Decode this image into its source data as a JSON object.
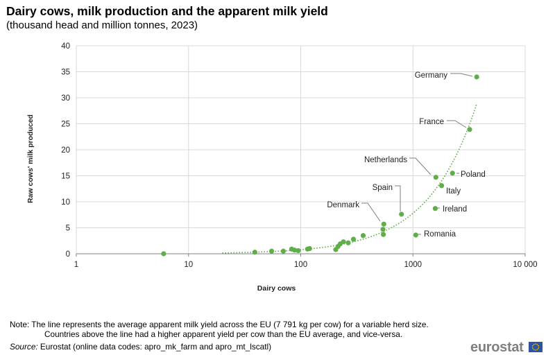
{
  "header": {
    "title": "Dairy cows, milk production and the apparent milk yield",
    "subtitle": "(thousand head and million tonnes, 2023)"
  },
  "chart_data": {
    "type": "scatter",
    "xlabel": "Dairy cows",
    "ylabel": "Raw cows' milk produced",
    "x_scale": "log",
    "xlim": [
      1,
      10000
    ],
    "ylim": [
      0,
      40
    ],
    "x_ticks": [
      1,
      10,
      100,
      1000,
      10000
    ],
    "x_tick_labels": [
      "1",
      "10",
      "100",
      "1000",
      "10 000"
    ],
    "y_ticks": [
      0,
      5,
      10,
      15,
      20,
      25,
      30,
      35,
      40
    ],
    "grid": true,
    "point_color": "#5fae4a",
    "trend_color": "#5fae4a",
    "trend": {
      "name": "EU average apparent milk yield",
      "yield_tonnes_per_cow": 7.791,
      "x_range": [
        20,
        3700
      ]
    },
    "points": [
      {
        "label": "Germany",
        "x": 3700,
        "y": 34.0
      },
      {
        "label": "France",
        "x": 3200,
        "y": 23.9
      },
      {
        "label": "Netherlands",
        "x": 1600,
        "y": 14.7
      },
      {
        "label": "Poland",
        "x": 2250,
        "y": 15.5
      },
      {
        "label": "Italy",
        "x": 1800,
        "y": 13.1
      },
      {
        "label": "Ireland",
        "x": 1580,
        "y": 8.7
      },
      {
        "label": "Spain",
        "x": 790,
        "y": 7.6
      },
      {
        "label": "Denmark",
        "x": 550,
        "y": 5.7
      },
      {
        "label": "Romania",
        "x": 1060,
        "y": 3.6
      },
      {
        "label": "",
        "x": 540,
        "y": 4.7
      },
      {
        "label": "",
        "x": 545,
        "y": 3.7
      },
      {
        "label": "",
        "x": 360,
        "y": 3.5
      },
      {
        "label": "",
        "x": 295,
        "y": 2.8
      },
      {
        "label": "",
        "x": 265,
        "y": 2.1
      },
      {
        "label": "",
        "x": 240,
        "y": 2.3
      },
      {
        "label": "",
        "x": 225,
        "y": 1.9
      },
      {
        "label": "",
        "x": 215,
        "y": 1.4
      },
      {
        "label": "",
        "x": 205,
        "y": 0.8
      },
      {
        "label": "",
        "x": 120,
        "y": 1.0
      },
      {
        "label": "",
        "x": 115,
        "y": 0.9
      },
      {
        "label": "",
        "x": 95,
        "y": 0.6
      },
      {
        "label": "",
        "x": 88,
        "y": 0.7
      },
      {
        "label": "",
        "x": 83,
        "y": 0.9
      },
      {
        "label": "",
        "x": 70,
        "y": 0.5
      },
      {
        "label": "",
        "x": 55,
        "y": 0.5
      },
      {
        "label": "",
        "x": 39,
        "y": 0.3
      },
      {
        "label": "",
        "x": 6,
        "y": 0.0
      }
    ]
  },
  "notes": {
    "line1": "Note: The line represents the average apparent milk yield across the EU (7 791 kg per cow) for a variable herd size.",
    "line2": "Countries above the line had a higher apparent yield per cow than the EU average, and vice-versa.",
    "source_label": "Source:",
    "source_text": " Eurostat (online data codes: apro_mk_farm and apro_mt_lscatl)"
  },
  "logo": {
    "text": "eurostat",
    "flag_color": "#2f53a7",
    "star_color": "#ffd700"
  }
}
